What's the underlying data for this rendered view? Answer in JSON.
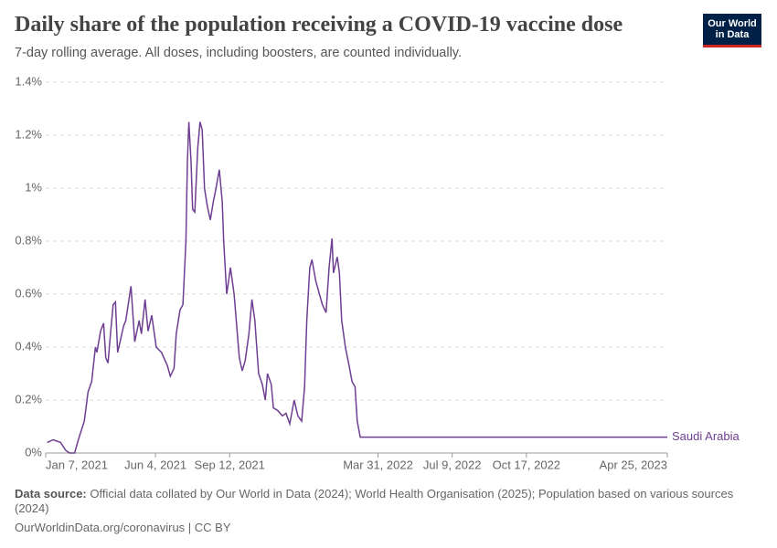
{
  "chart_data": {
    "type": "line",
    "title": "Daily share of the population receiving a COVID-19 vaccine dose",
    "subtitle": "7-day rolling average. All doses, including boosters, are counted individually.",
    "logo": [
      "Our World",
      "in Data"
    ],
    "source_label": "Data source:",
    "source": "Official data collated by Our World in Data (2024); World Health Organisation (2025); Population based on various sources (2024)",
    "footer": "OurWorldinData.org/coronavirus | CC BY",
    "x": [
      "2021-01-09",
      "2021-01-17",
      "2021-01-27",
      "2021-02-03",
      "2021-02-08",
      "2021-02-15",
      "2021-02-20",
      "2021-02-28",
      "2021-03-05",
      "2021-03-10",
      "2021-03-15",
      "2021-03-17",
      "2021-03-22",
      "2021-03-26",
      "2021-03-29",
      "2021-04-01",
      "2021-04-04",
      "2021-04-08",
      "2021-04-11",
      "2021-04-14",
      "2021-04-18",
      "2021-04-22",
      "2021-04-25",
      "2021-05-02",
      "2021-05-07",
      "2021-05-13",
      "2021-05-16",
      "2021-05-21",
      "2021-05-25",
      "2021-05-30",
      "2021-06-05",
      "2021-06-12",
      "2021-06-20",
      "2021-06-24",
      "2021-06-29",
      "2021-07-02",
      "2021-07-07",
      "2021-07-11",
      "2021-07-15",
      "2021-07-17",
      "2021-07-19",
      "2021-07-22",
      "2021-07-24",
      "2021-07-27",
      "2021-07-31",
      "2021-08-03",
      "2021-08-06",
      "2021-08-09",
      "2021-08-13",
      "2021-08-17",
      "2021-08-21",
      "2021-08-24",
      "2021-08-29",
      "2021-09-02",
      "2021-09-04",
      "2021-09-08",
      "2021-09-13",
      "2021-09-18",
      "2021-09-22",
      "2021-09-25",
      "2021-09-29",
      "2021-10-03",
      "2021-10-08",
      "2021-10-12",
      "2021-10-16",
      "2021-10-21",
      "2021-10-26",
      "2021-10-30",
      "2021-11-02",
      "2021-11-07",
      "2021-11-10",
      "2021-11-16",
      "2021-11-22",
      "2021-11-27",
      "2021-12-02",
      "2021-12-08",
      "2021-12-13",
      "2021-12-18",
      "2021-12-22",
      "2021-12-25",
      "2021-12-29",
      "2022-01-01",
      "2022-01-06",
      "2022-01-11",
      "2022-01-15",
      "2022-01-20",
      "2022-01-24",
      "2022-01-28",
      "2022-01-30",
      "2022-02-04",
      "2022-02-07",
      "2022-02-10",
      "2022-02-15",
      "2022-02-20",
      "2022-02-24",
      "2022-02-28",
      "2022-03-03",
      "2022-03-07",
      "2022-03-11",
      "2023-04-25"
    ],
    "series": [
      {
        "name": "Saudi Arabia",
        "color": "#6d3e91",
        "values": [
          0.04,
          0.05,
          0.04,
          0.01,
          0.0,
          0.0,
          0.05,
          0.12,
          0.23,
          0.27,
          0.4,
          0.38,
          0.46,
          0.49,
          0.36,
          0.34,
          0.44,
          0.56,
          0.57,
          0.38,
          0.43,
          0.48,
          0.5,
          0.63,
          0.42,
          0.5,
          0.45,
          0.58,
          0.46,
          0.52,
          0.4,
          0.38,
          0.33,
          0.29,
          0.32,
          0.45,
          0.54,
          0.56,
          0.8,
          1.1,
          1.25,
          1.1,
          0.92,
          0.91,
          1.15,
          1.25,
          1.22,
          1.0,
          0.93,
          0.88,
          0.95,
          0.99,
          1.07,
          0.95,
          0.8,
          0.6,
          0.7,
          0.6,
          0.46,
          0.36,
          0.31,
          0.35,
          0.45,
          0.58,
          0.5,
          0.3,
          0.26,
          0.2,
          0.3,
          0.26,
          0.17,
          0.16,
          0.14,
          0.15,
          0.11,
          0.2,
          0.14,
          0.12,
          0.25,
          0.5,
          0.7,
          0.73,
          0.65,
          0.6,
          0.56,
          0.53,
          0.7,
          0.81,
          0.68,
          0.74,
          0.68,
          0.5,
          0.4,
          0.33,
          0.27,
          0.25,
          0.12,
          0.06,
          0.06,
          0.06
        ]
      }
    ],
    "xlim": [
      "2021-01-07",
      "2023-04-25"
    ],
    "xticks": [
      {
        "value": "2021-01-07",
        "label": "Jan 7, 2021"
      },
      {
        "value": "2021-06-04",
        "label": "Jun 4, 2021"
      },
      {
        "value": "2021-09-12",
        "label": "Sep 12, 2021"
      },
      {
        "value": "2022-03-31",
        "label": "Mar 31, 2022"
      },
      {
        "value": "2022-07-09",
        "label": "Jul 9, 2022"
      },
      {
        "value": "2022-10-17",
        "label": "Oct 17, 2022"
      },
      {
        "value": "2023-04-25",
        "label": "Apr 25, 2023"
      }
    ],
    "ylim": [
      0,
      1.4
    ],
    "yticks": [
      {
        "value": 0,
        "label": "0%"
      },
      {
        "value": 0.2,
        "label": "0.2%"
      },
      {
        "value": 0.4,
        "label": "0.4%"
      },
      {
        "value": 0.6,
        "label": "0.6%"
      },
      {
        "value": 0.8,
        "label": "0.8%"
      },
      {
        "value": 1,
        "label": "1%"
      },
      {
        "value": 1.2,
        "label": "1.2%"
      },
      {
        "value": 1.4,
        "label": "1.4%"
      }
    ],
    "grid": true
  }
}
